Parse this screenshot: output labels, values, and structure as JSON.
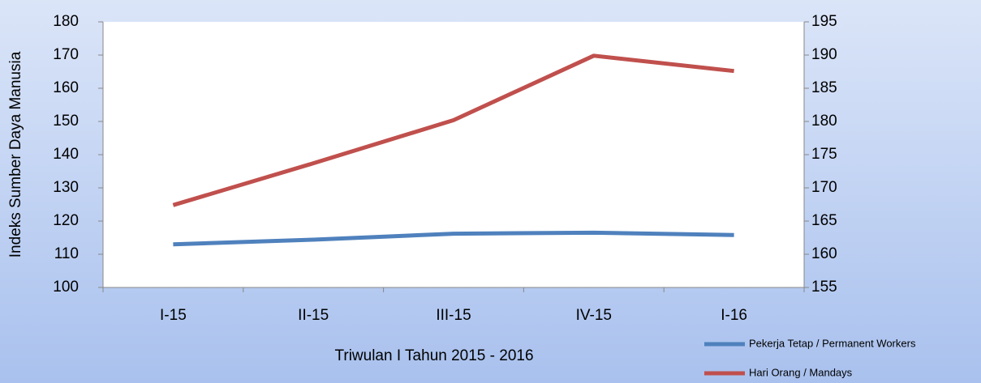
{
  "chart_data": {
    "type": "line",
    "y_label": "Indeks Sumber Daya Manusia",
    "x_label": "Triwulan I Tahun 2015 - 2016",
    "categories": [
      "I-15",
      "II-15",
      "III-15",
      "IV-15",
      "I-16"
    ],
    "series": [
      {
        "name": "Pekerja Tetap / Permanent Workers",
        "color": "#4f81bd",
        "values": [
          113.0,
          114.4,
          116.2,
          116.5,
          115.8
        ]
      },
      {
        "name": "Hari Orang / Mandays",
        "color": "#c0504d",
        "axis": "y2",
        "values": [
          167.4,
          173.7,
          180.2,
          189.9,
          187.6
        ]
      }
    ],
    "ylim": [
      100,
      180
    ],
    "yticks": [
      100,
      110,
      120,
      130,
      140,
      150,
      160,
      170,
      180
    ],
    "y2lim": [
      155,
      195
    ],
    "y2ticks": [
      155,
      160,
      165,
      170,
      175,
      180,
      185,
      190,
      195
    ],
    "legend": "bottom-right"
  }
}
